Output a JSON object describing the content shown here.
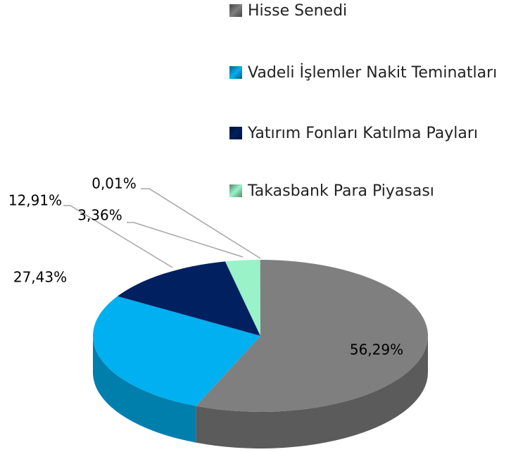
{
  "chart_data": {
    "type": "pie",
    "categories": [
      "Hisse Senedi",
      "Vadeli İşlemler Nakit Teminatları",
      "Yatırım Fonları Katılma Payları",
      "Takasbank Para Piyasası",
      null
    ],
    "values": [
      56.29,
      27.43,
      12.91,
      3.36,
      0.01
    ],
    "value_labels": [
      "56,29%",
      "27,43%",
      "12,91%",
      "3,36%",
      "0,01%"
    ],
    "colors": [
      "#7f7f7f",
      "#00b0f0",
      "#002060",
      "#99f2c8",
      "#c00000"
    ]
  }
}
